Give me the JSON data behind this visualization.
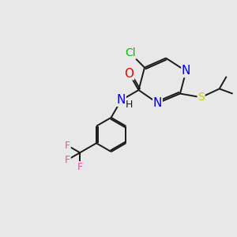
{
  "bg_color": "#e8e8e8",
  "bond_color": "#1a1a1a",
  "atom_colors": {
    "Cl": "#00bb00",
    "N": "#0000ee",
    "O": "#ee0000",
    "S": "#cccc00",
    "F": "#ff44aa",
    "H": "#1a1a1a",
    "C": "#1a1a1a"
  },
  "font_size": 9,
  "line_width": 1.4
}
